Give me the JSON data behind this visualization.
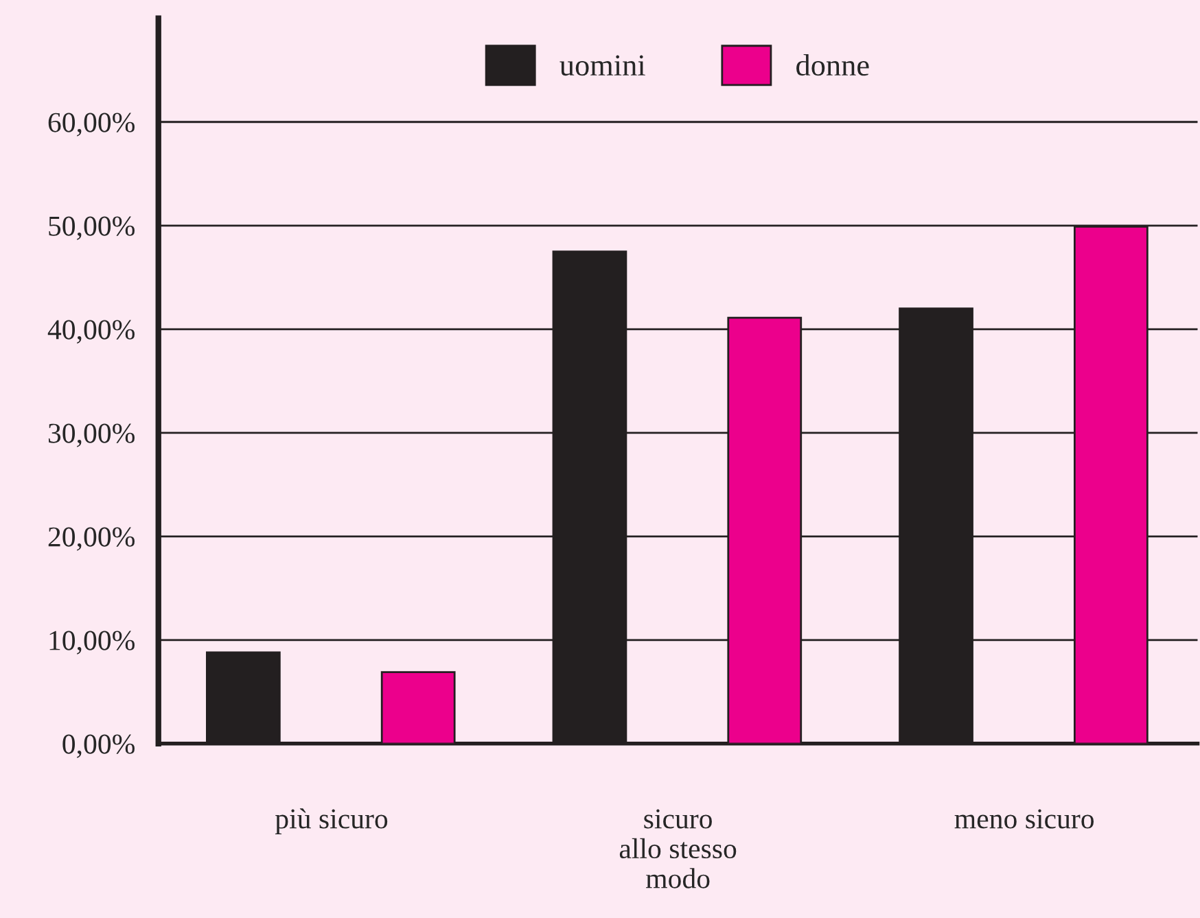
{
  "chart_data": {
    "type": "bar",
    "categories": [
      "più sicuro",
      "sicuro\nallo stesso\nmodo",
      "meno sicuro"
    ],
    "series": [
      {
        "name": "uomini",
        "color": "#231f20",
        "values": [
          8.8,
          47.5,
          42.0
        ]
      },
      {
        "name": "donne",
        "color": "#ec008c",
        "values": [
          6.9,
          41.1,
          49.9
        ]
      }
    ],
    "ylim": [
      0,
      70
    ],
    "yticks": [
      {
        "value": 0,
        "label": "0,00%"
      },
      {
        "value": 10,
        "label": "10,00%"
      },
      {
        "value": 20,
        "label": "20,00%"
      },
      {
        "value": 30,
        "label": "30,00%"
      },
      {
        "value": 40,
        "label": "40,00%"
      },
      {
        "value": 50,
        "label": "50,00%"
      },
      {
        "value": 60,
        "label": "60,00%"
      }
    ],
    "grid": "y",
    "legend": "top"
  }
}
